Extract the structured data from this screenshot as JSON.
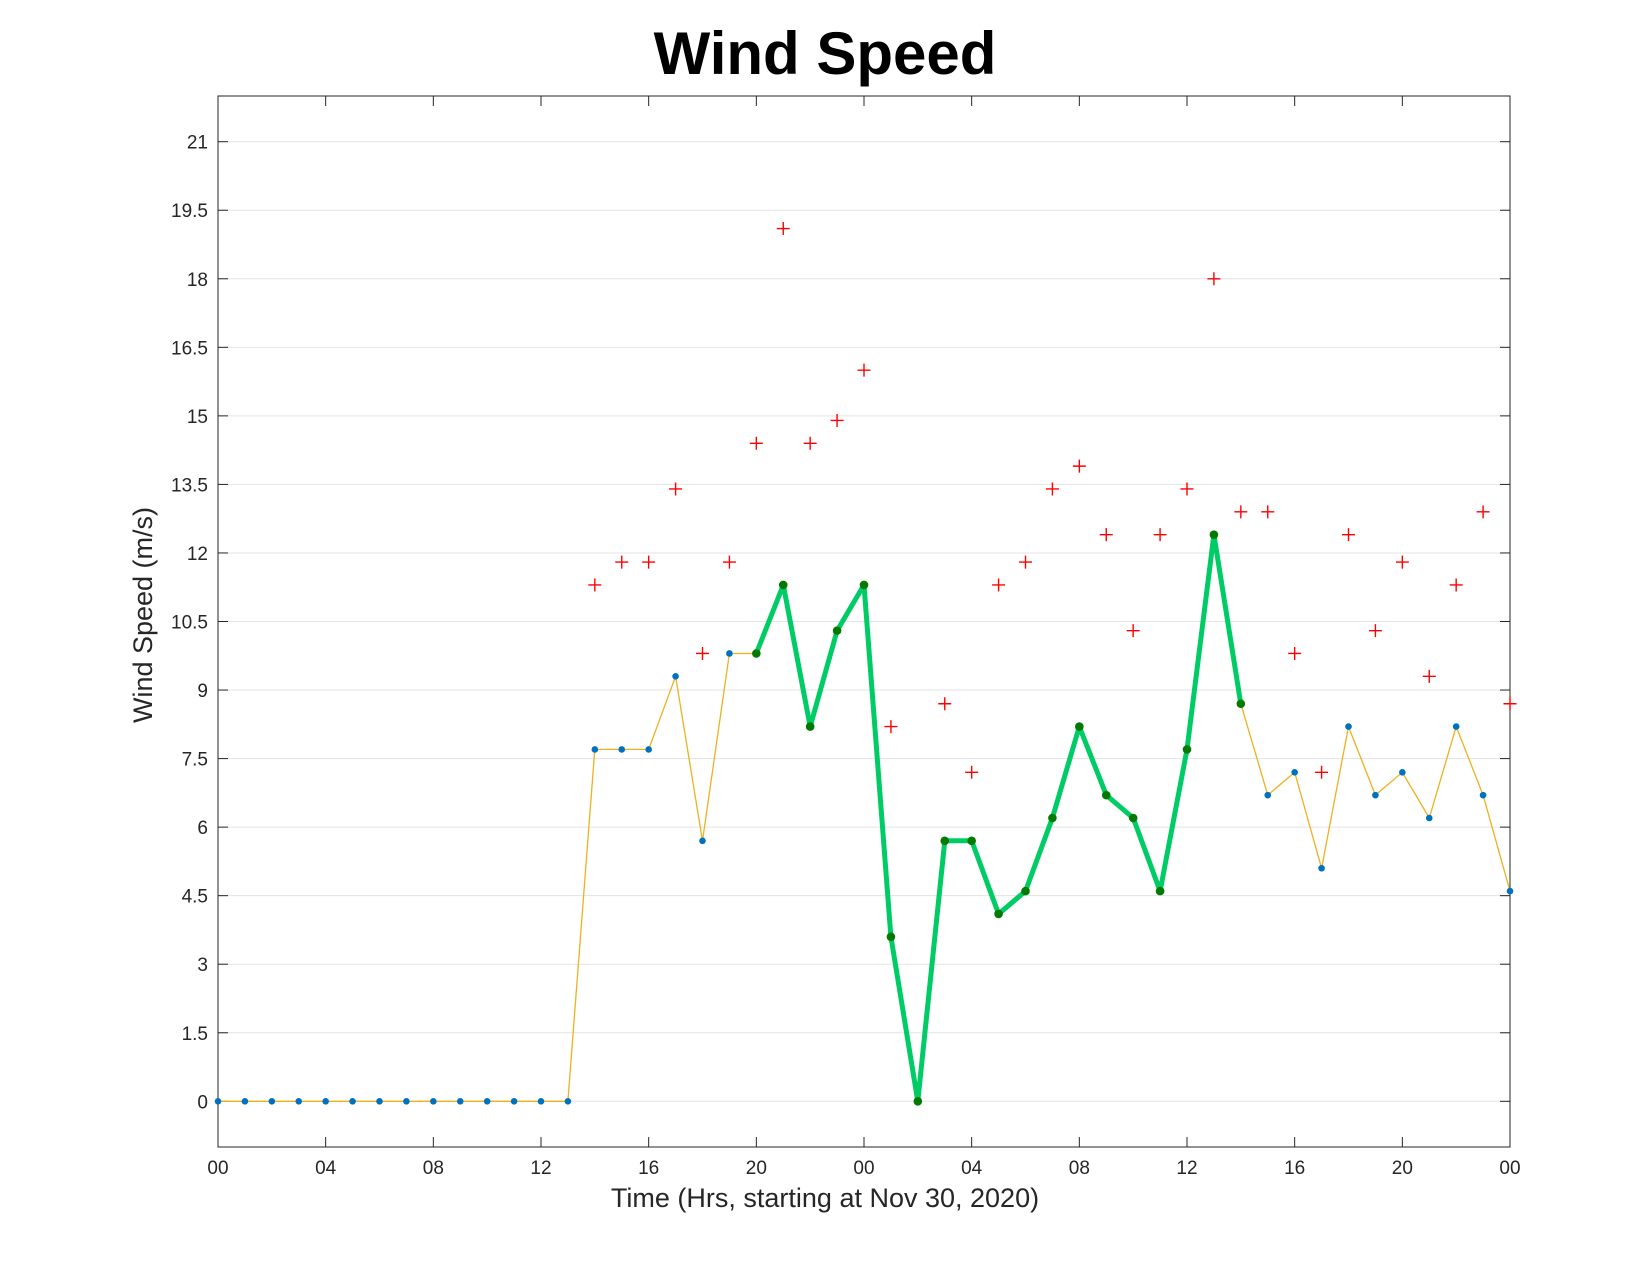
{
  "chart_data": {
    "type": "line",
    "title": "Wind Speed",
    "xlabel": "Time (Hrs, starting at Nov 30, 2020)",
    "ylabel": "Wind Speed (m/s)",
    "x_unit": "hours",
    "xlim": [
      0,
      48
    ],
    "ylim": [
      -1,
      22
    ],
    "yticks": [
      0,
      1.5,
      3,
      4.5,
      6,
      7.5,
      9,
      10.5,
      12,
      13.5,
      15,
      16.5,
      18,
      19.5,
      21
    ],
    "ytick_labels": [
      "0",
      "1.5",
      "3",
      "4.5",
      "6",
      "7.5",
      "9",
      "10.5",
      "12",
      "13.5",
      "15",
      "16.5",
      "18",
      "19.5",
      "21"
    ],
    "xticks": [
      0,
      4,
      8,
      12,
      16,
      20,
      24,
      28,
      32,
      36,
      40,
      44,
      48
    ],
    "xtick_labels": [
      "00",
      "04",
      "08",
      "12",
      "16",
      "20",
      "00",
      "04",
      "08",
      "12",
      "16",
      "20",
      "00"
    ],
    "grid": "horizontal",
    "colors": {
      "sustained_line": "#EDB120",
      "sustained_marker": "#0072BD",
      "highlight_line": "#00CC66",
      "highlight_marker": "#007A00",
      "gust_marker": "#FF0000",
      "grid": "#E3E3E3",
      "axes": "#262626"
    },
    "series": [
      {
        "role": "sustained",
        "marker": "dot",
        "x": [
          0,
          1,
          2,
          3,
          4,
          5,
          6,
          7,
          8,
          9,
          10,
          11,
          12,
          13,
          14,
          15,
          16,
          17,
          18,
          19,
          20,
          21,
          22,
          23,
          24,
          25,
          26,
          27,
          28,
          29,
          30,
          31,
          32,
          33,
          34,
          35,
          36,
          37,
          38,
          39,
          40,
          41,
          42,
          43,
          44,
          45,
          46,
          47,
          48
        ],
        "values": [
          0,
          0,
          0,
          0,
          0,
          0,
          0,
          0,
          0,
          0,
          0,
          0,
          0,
          0,
          7.7,
          7.7,
          7.7,
          9.3,
          5.7,
          9.8,
          9.8,
          11.3,
          8.2,
          10.3,
          11.3,
          3.6,
          0,
          5.7,
          5.7,
          4.1,
          4.6,
          6.2,
          8.2,
          6.7,
          6.2,
          4.6,
          7.7,
          12.4,
          8.7,
          6.7,
          7.2,
          5.1,
          8.2,
          6.7,
          7.2,
          6.2,
          8.2,
          6.7,
          4.6
        ]
      },
      {
        "role": "highlight",
        "marker": "dot",
        "x": [
          20,
          21,
          22,
          23,
          24,
          25,
          26,
          27,
          28,
          29,
          30,
          31,
          32,
          33,
          34,
          35,
          36,
          37,
          38
        ],
        "values": [
          9.8,
          11.3,
          8.2,
          10.3,
          11.3,
          3.6,
          0,
          5.7,
          5.7,
          4.1,
          4.6,
          6.2,
          8.2,
          6.7,
          6.2,
          4.6,
          7.7,
          12.4,
          8.7
        ]
      },
      {
        "role": "gust",
        "marker": "plus",
        "x": [
          14,
          15,
          16,
          17,
          18,
          19,
          20,
          21,
          22,
          23,
          24,
          25,
          27,
          28,
          29,
          30,
          31,
          32,
          33,
          34,
          35,
          36,
          37,
          38,
          39,
          40,
          41,
          42,
          43,
          44,
          45,
          46,
          47,
          48
        ],
        "values": [
          11.3,
          11.8,
          11.8,
          13.4,
          9.8,
          11.8,
          14.4,
          19.1,
          14.4,
          14.9,
          16.0,
          8.2,
          8.7,
          7.2,
          11.3,
          11.8,
          13.4,
          13.9,
          12.4,
          10.3,
          12.4,
          13.4,
          18.0,
          12.9,
          12.9,
          9.8,
          7.2,
          12.4,
          10.3,
          11.8,
          9.3,
          11.3,
          12.9,
          8.7
        ]
      }
    ]
  }
}
